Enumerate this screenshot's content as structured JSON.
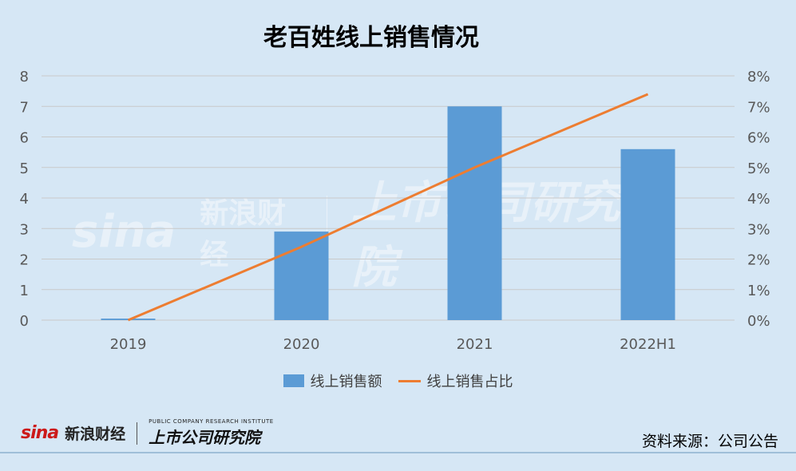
{
  "title": "老百姓线上销售情况",
  "chart_data": {
    "type": "bar",
    "categories": [
      "2019",
      "2020",
      "2021",
      "2022H1"
    ],
    "series": [
      {
        "name": "线上销售额",
        "type": "bar",
        "axis": "left",
        "values": [
          0.05,
          2.9,
          7.0,
          5.6
        ]
      },
      {
        "name": "线上销售占比",
        "type": "line",
        "axis": "right",
        "values": [
          0.0,
          2.4,
          5.0,
          7.4
        ]
      }
    ],
    "y_left": {
      "ylim": [
        0,
        8
      ],
      "ticks": [
        "0",
        "1",
        "2",
        "3",
        "4",
        "5",
        "6",
        "7",
        "8"
      ]
    },
    "y_right": {
      "ylim": [
        0,
        8
      ],
      "ticks": [
        "0%",
        "1%",
        "2%",
        "3%",
        "4%",
        "5%",
        "6%",
        "7%",
        "8%"
      ]
    },
    "grid": true,
    "legend_position": "bottom",
    "colors": {
      "bar": "#5b9bd5",
      "line": "#ed7d31",
      "grid": "#c9c9c9",
      "tick_text": "#595959"
    }
  },
  "footer": {
    "brand_sina": "sina",
    "brand_sina_cn": "新浪财经",
    "brand_research_en": "PUBLIC COMPANY RESEARCH INSTITUTE",
    "brand_research_cn": "上市公司研究院",
    "source": "资料来源：公司公告"
  }
}
